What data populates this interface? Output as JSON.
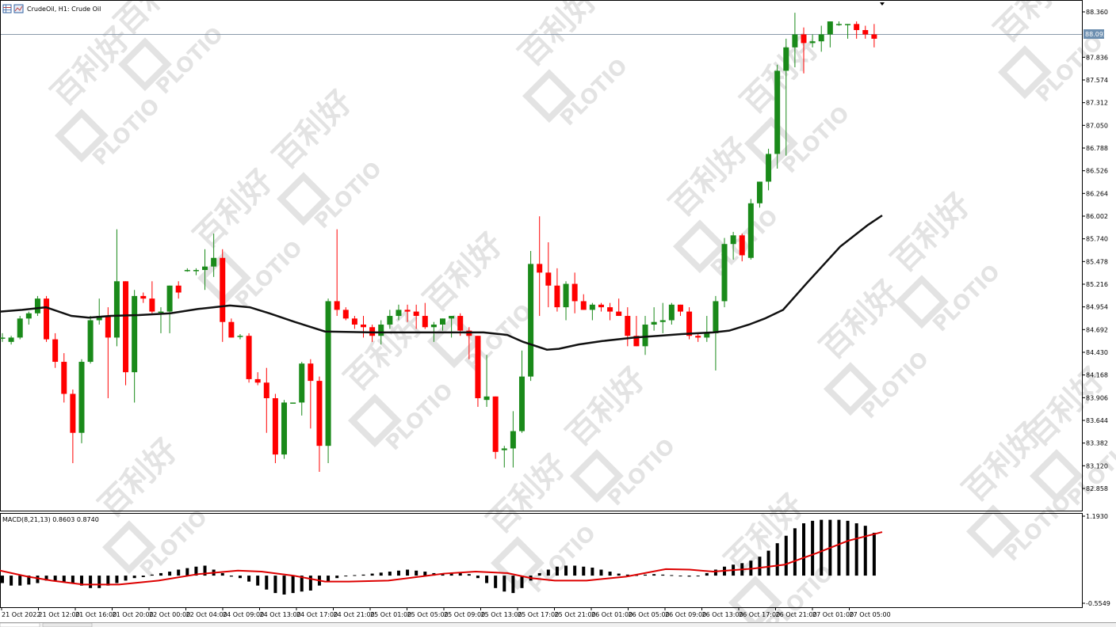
{
  "header": {
    "title": "CrudeOil, H1:  Crude Oil"
  },
  "watermark": {
    "cn_text": "百利好",
    "brand": "PLOTIO"
  },
  "colors": {
    "bull": "#1a8a1a",
    "bear": "#ff0000",
    "ma_line": "#111111",
    "macd_hist": "#000000",
    "macd_signal": "#dd0000",
    "price_tag_bg": "#6d8fb0"
  },
  "chart_data": [
    {
      "type": "candlestick",
      "title": "CrudeOil, H1:  Crude Oil",
      "current_price": "88.092",
      "y_ticks": [
        "88.360",
        "88.092",
        "87.836",
        "87.574",
        "87.312",
        "87.050",
        "86.788",
        "86.526",
        "86.264",
        "86.002",
        "85.740",
        "85.478",
        "85.216",
        "84.954",
        "84.692",
        "84.430",
        "84.168",
        "83.906",
        "83.644",
        "83.382",
        "83.120",
        "82.858"
      ],
      "ylim": [
        82.6,
        88.48
      ],
      "x_ticks": [
        "21 Oct 2022",
        "21 Oct 12:00",
        "21 Oct 16:00",
        "21 Oct 20:00",
        "22 Oct 00:00",
        "22 Oct 04:00",
        "24 Oct 09:00",
        "24 Oct 13:00",
        "24 Oct 17:00",
        "24 Oct 21:00",
        "25 Oct 01:00",
        "25 Oct 05:00",
        "25 Oct 09:00",
        "25 Oct 13:00",
        "25 Oct 17:00",
        "25 Oct 21:00",
        "26 Oct 01:00",
        "26 Oct 05:00",
        "26 Oct 09:00",
        "26 Oct 13:00",
        "26 Oct 17:00",
        "26 Oct 21:00",
        "27 Oct 01:00",
        "27 Oct 05:00"
      ],
      "candles": [
        [
          84.6,
          84.65,
          84.55,
          84.6
        ],
        [
          84.55,
          84.62,
          84.52,
          84.6
        ],
        [
          84.6,
          84.85,
          84.58,
          84.82
        ],
        [
          84.82,
          84.9,
          84.75,
          84.88
        ],
        [
          84.88,
          85.08,
          84.85,
          85.05
        ],
        [
          85.05,
          85.08,
          84.55,
          84.58
        ],
        [
          84.58,
          84.65,
          84.25,
          84.32
        ],
        [
          84.32,
          84.42,
          83.85,
          83.95
        ],
        [
          83.95,
          84.0,
          83.15,
          83.5
        ],
        [
          83.5,
          84.35,
          83.38,
          84.32
        ],
        [
          84.32,
          84.85,
          84.3,
          84.8
        ],
        [
          84.8,
          85.05,
          84.75,
          84.85
        ],
        [
          84.85,
          84.95,
          83.9,
          84.6
        ],
        [
          84.6,
          85.85,
          84.5,
          85.25
        ],
        [
          85.25,
          85.25,
          84.05,
          84.2
        ],
        [
          84.2,
          85.15,
          83.85,
          85.08
        ],
        [
          85.08,
          85.12,
          85.0,
          85.05
        ],
        [
          85.05,
          85.25,
          84.88,
          84.9
        ],
        [
          84.9,
          84.95,
          84.65,
          84.9
        ],
        [
          84.9,
          85.2,
          84.65,
          85.2
        ],
        [
          85.2,
          85.25,
          85.05,
          85.12
        ],
        [
          85.38,
          85.4,
          85.36,
          85.38
        ],
        [
          85.38,
          85.4,
          85.32,
          85.38
        ],
        [
          85.38,
          85.62,
          85.15,
          85.42
        ],
        [
          85.42,
          85.8,
          85.3,
          85.52
        ],
        [
          85.52,
          85.62,
          84.55,
          84.78
        ],
        [
          84.78,
          84.82,
          84.6,
          84.6
        ],
        [
          84.62,
          84.64,
          84.58,
          84.62
        ],
        [
          84.62,
          84.65,
          84.08,
          84.12
        ],
        [
          84.12,
          84.2,
          84.05,
          84.08
        ],
        [
          84.08,
          84.25,
          83.5,
          83.9
        ],
        [
          83.9,
          83.95,
          83.15,
          83.25
        ],
        [
          83.25,
          83.88,
          83.2,
          83.85
        ],
        [
          83.85,
          83.85,
          83.85,
          83.85
        ],
        [
          83.85,
          84.32,
          83.7,
          84.3
        ],
        [
          84.3,
          84.35,
          83.55,
          84.1
        ],
        [
          84.1,
          84.15,
          83.05,
          83.35
        ],
        [
          83.35,
          85.05,
          83.15,
          85.02
        ],
        [
          85.02,
          85.85,
          84.85,
          84.92
        ],
        [
          84.92,
          84.95,
          84.8,
          84.82
        ],
        [
          84.82,
          84.85,
          84.7,
          84.75
        ],
        [
          84.75,
          84.85,
          84.6,
          84.72
        ],
        [
          84.72,
          84.75,
          84.55,
          84.62
        ],
        [
          84.62,
          84.8,
          84.52,
          84.75
        ],
        [
          84.75,
          84.92,
          84.7,
          84.85
        ],
        [
          84.85,
          84.98,
          84.8,
          84.92
        ],
        [
          84.92,
          84.98,
          84.78,
          84.9
        ],
        [
          84.9,
          84.98,
          84.7,
          84.85
        ],
        [
          84.85,
          85.0,
          84.7,
          84.72
        ],
        [
          84.72,
          84.78,
          84.55,
          84.75
        ],
        [
          84.75,
          84.82,
          84.68,
          84.82
        ],
        [
          84.82,
          84.85,
          84.6,
          84.85
        ],
        [
          84.85,
          84.88,
          84.62,
          84.68
        ],
        [
          84.68,
          84.72,
          84.35,
          84.62
        ],
        [
          84.62,
          84.62,
          83.8,
          83.9
        ],
        [
          83.88,
          84.4,
          83.8,
          83.92
        ],
        [
          83.92,
          83.92,
          83.2,
          83.28
        ],
        [
          83.3,
          83.35,
          83.1,
          83.32
        ],
        [
          83.32,
          83.75,
          83.1,
          83.52
        ],
        [
          83.52,
          84.45,
          83.5,
          84.15
        ],
        [
          84.15,
          85.6,
          84.1,
          85.45
        ],
        [
          85.45,
          86.0,
          84.85,
          85.35
        ],
        [
          85.35,
          85.7,
          84.95,
          85.2
        ],
        [
          85.2,
          85.4,
          84.9,
          84.95
        ],
        [
          84.95,
          85.25,
          84.8,
          85.22
        ],
        [
          85.22,
          85.35,
          84.88,
          85.02
        ],
        [
          85.02,
          85.1,
          84.92,
          84.92
        ],
        [
          84.92,
          85.0,
          84.8,
          84.98
        ],
        [
          84.98,
          85.0,
          84.9,
          84.95
        ],
        [
          84.95,
          85.0,
          84.8,
          84.9
        ],
        [
          84.9,
          85.05,
          84.85,
          84.85
        ],
        [
          84.85,
          84.95,
          84.5,
          84.62
        ],
        [
          84.62,
          84.85,
          84.5,
          84.5
        ],
        [
          84.5,
          84.85,
          84.4,
          84.75
        ],
        [
          84.75,
          84.95,
          84.68,
          84.78
        ],
        [
          84.78,
          85.0,
          84.65,
          84.8
        ],
        [
          84.8,
          85.0,
          84.75,
          84.98
        ],
        [
          84.98,
          84.98,
          84.85,
          84.9
        ],
        [
          84.9,
          84.95,
          84.58,
          84.62
        ],
        [
          84.62,
          84.65,
          84.55,
          84.6
        ],
        [
          84.6,
          84.85,
          84.55,
          84.65
        ],
        [
          84.65,
          85.08,
          84.22,
          85.02
        ],
        [
          85.02,
          85.75,
          84.95,
          85.68
        ],
        [
          85.68,
          85.82,
          85.5,
          85.78
        ],
        [
          85.78,
          85.8,
          85.48,
          85.55
        ],
        [
          85.52,
          86.2,
          85.5,
          86.15
        ],
        [
          86.15,
          86.4,
          86.1,
          86.4
        ],
        [
          86.4,
          86.78,
          86.3,
          86.72
        ],
        [
          86.72,
          87.75,
          86.55,
          87.68
        ],
        [
          87.68,
          88.05,
          86.7,
          87.95
        ],
        [
          87.95,
          88.35,
          87.72,
          88.1
        ],
        [
          88.1,
          88.18,
          87.65,
          88.0
        ],
        [
          88.0,
          88.1,
          87.95,
          88.02
        ],
        [
          88.02,
          88.2,
          87.9,
          88.1
        ],
        [
          88.1,
          88.25,
          87.95,
          88.25
        ],
        [
          88.22,
          88.25,
          88.2,
          88.22
        ],
        [
          88.22,
          88.22,
          88.05,
          88.22
        ],
        [
          88.22,
          88.25,
          88.05,
          88.15
        ],
        [
          88.15,
          88.2,
          88.05,
          88.1
        ],
        [
          88.1,
          88.22,
          87.95,
          88.05
        ]
      ],
      "ma": [
        [
          0,
          84.9
        ],
        [
          28,
          84.92
        ],
        [
          58,
          84.95
        ],
        [
          90,
          84.85
        ],
        [
          112,
          84.83
        ],
        [
          140,
          84.85
        ],
        [
          175,
          84.86
        ],
        [
          215,
          84.88
        ],
        [
          250,
          84.93
        ],
        [
          290,
          84.97
        ],
        [
          315,
          84.95
        ],
        [
          340,
          84.88
        ],
        [
          372,
          84.78
        ],
        [
          410,
          84.67
        ],
        [
          470,
          84.66
        ],
        [
          520,
          84.66
        ],
        [
          560,
          84.66
        ],
        [
          610,
          84.66
        ],
        [
          640,
          84.63
        ],
        [
          660,
          84.55
        ],
        [
          690,
          84.46
        ],
        [
          705,
          84.47
        ],
        [
          730,
          84.52
        ],
        [
          760,
          84.56
        ],
        [
          800,
          84.6
        ],
        [
          830,
          84.62
        ],
        [
          860,
          84.64
        ],
        [
          900,
          84.66
        ],
        [
          920,
          84.68
        ],
        [
          945,
          84.75
        ],
        [
          965,
          84.82
        ],
        [
          988,
          84.92
        ],
        [
          1020,
          85.25
        ],
        [
          1060,
          85.65
        ],
        [
          1095,
          85.9
        ],
        [
          1113,
          86.01
        ]
      ]
    },
    {
      "type": "bar",
      "title": "MACD(8,21,13) 0.8603 0.8740",
      "y_ticks": [
        "1.1930",
        "-0.5549"
      ],
      "ylim": [
        -0.5549,
        1.193
      ],
      "histogram": [
        -0.15,
        -0.2,
        -0.2,
        -0.18,
        -0.15,
        -0.1,
        -0.1,
        -0.12,
        -0.15,
        -0.2,
        -0.25,
        -0.25,
        -0.2,
        -0.15,
        -0.1,
        -0.05,
        -0.03,
        0.02,
        0.05,
        0.08,
        0.12,
        0.15,
        0.18,
        0.2,
        0.12,
        0.05,
        -0.02,
        -0.05,
        -0.12,
        -0.2,
        -0.28,
        -0.35,
        -0.38,
        -0.35,
        -0.32,
        -0.3,
        -0.2,
        -0.12,
        -0.05,
        0.0,
        0.01,
        0.02,
        0.04,
        0.06,
        0.08,
        0.1,
        0.12,
        0.1,
        0.08,
        0.05,
        0.04,
        0.05,
        0.05,
        0.03,
        -0.05,
        -0.15,
        -0.25,
        -0.32,
        -0.35,
        -0.25,
        -0.1,
        0.05,
        0.12,
        0.18,
        0.2,
        0.2,
        0.18,
        0.16,
        0.12,
        0.08,
        0.04,
        0.02,
        0.01,
        0.02,
        0.03,
        0.02,
        0.01,
        0.0,
        -0.02,
        0.0,
        0.05,
        0.12,
        0.18,
        0.22,
        0.25,
        0.3,
        0.38,
        0.5,
        0.65,
        0.8,
        0.95,
        1.05,
        1.1,
        1.12,
        1.12,
        1.12,
        1.1,
        1.05,
        1.0,
        0.86
      ],
      "signal": [
        [
          0,
          0.1
        ],
        [
          35,
          -0.02
        ],
        [
          65,
          -0.1
        ],
        [
          105,
          -0.18
        ],
        [
          150,
          -0.18
        ],
        [
          200,
          -0.1
        ],
        [
          250,
          0.03
        ],
        [
          300,
          0.1
        ],
        [
          330,
          0.08
        ],
        [
          370,
          0.0
        ],
        [
          410,
          -0.12
        ],
        [
          440,
          -0.12
        ],
        [
          490,
          -0.1
        ],
        [
          520,
          -0.04
        ],
        [
          560,
          0.04
        ],
        [
          600,
          0.08
        ],
        [
          640,
          0.05
        ],
        [
          670,
          -0.05
        ],
        [
          700,
          -0.1
        ],
        [
          740,
          -0.1
        ],
        [
          790,
          -0.02
        ],
        [
          840,
          0.13
        ],
        [
          870,
          0.12
        ],
        [
          900,
          0.08
        ],
        [
          950,
          0.14
        ],
        [
          990,
          0.22
        ],
        [
          1030,
          0.45
        ],
        [
          1070,
          0.7
        ],
        [
          1113,
          0.874
        ]
      ]
    }
  ]
}
